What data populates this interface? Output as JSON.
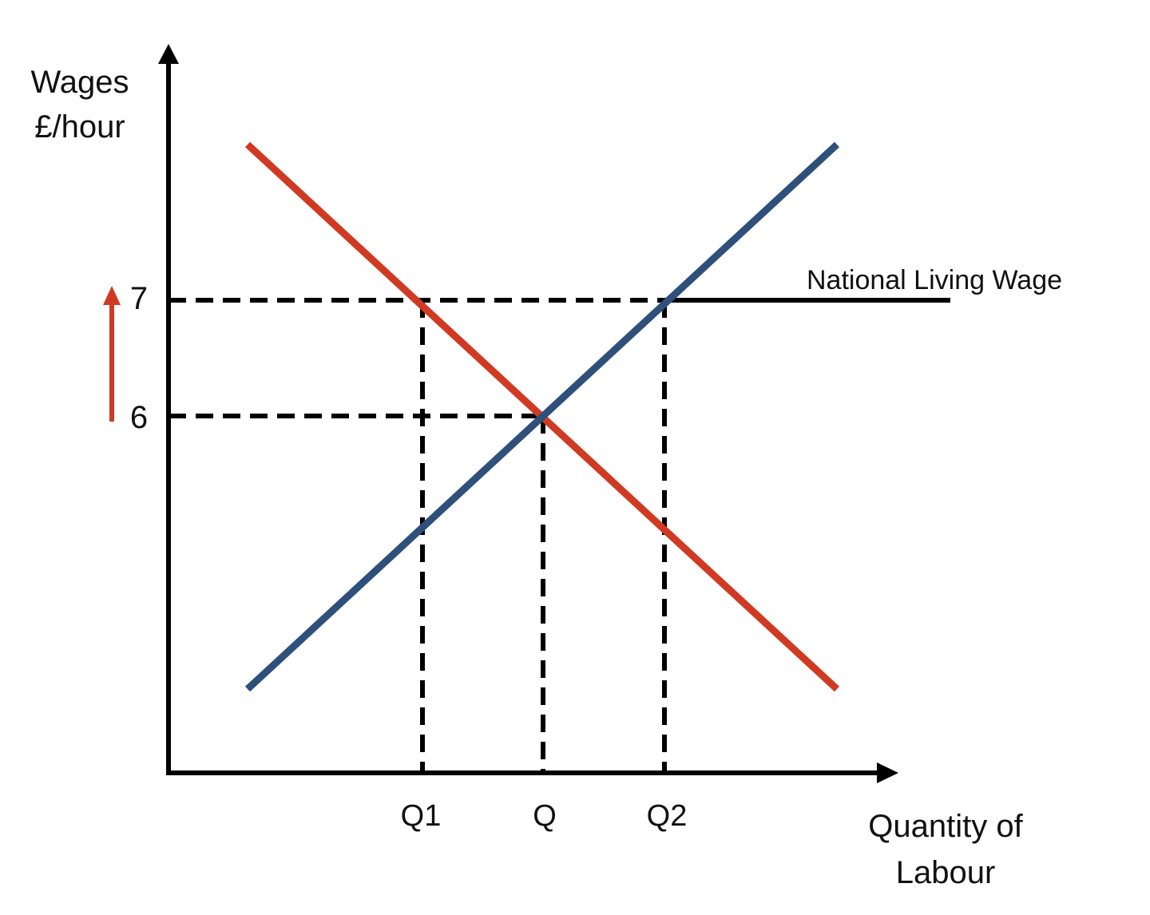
{
  "diagram": {
    "y_axis_label": [
      "Wages",
      "£/hour"
    ],
    "x_axis_label": [
      "Quantity of",
      "Labour"
    ],
    "y_ticks": [
      "6",
      "7"
    ],
    "x_ticks": [
      "Q1",
      "Q",
      "Q2"
    ],
    "national_living_wage_label": "National Living Wage",
    "colors": {
      "demand_curve": "#d03a22",
      "supply_curve": "#2e507a",
      "axes": "#000000",
      "increase_arrow": "#d03a22"
    },
    "icons": [
      "up-arrow-icon"
    ]
  }
}
